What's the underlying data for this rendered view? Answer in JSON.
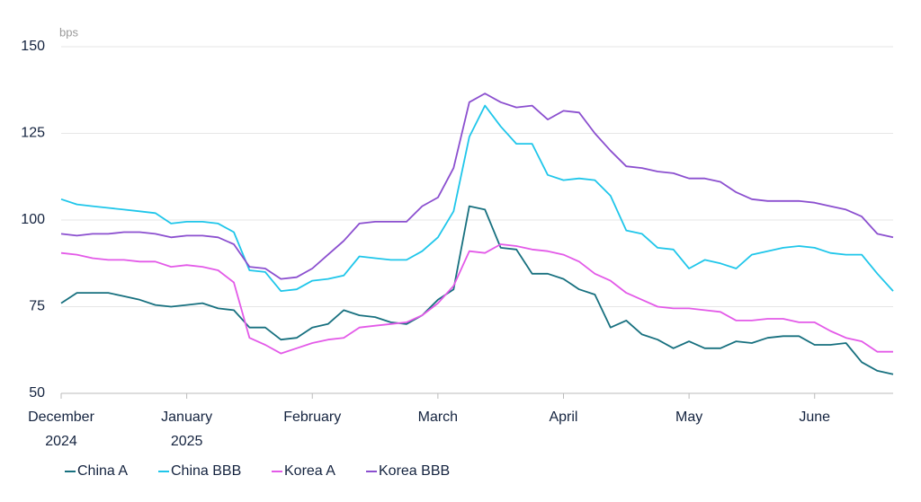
{
  "chart_data": {
    "type": "line",
    "y_unit": "bps",
    "categories": [
      "December\n2024",
      null,
      null,
      null,
      null,
      null,
      null,
      null,
      "January\n2025",
      null,
      null,
      null,
      null,
      null,
      null,
      null,
      "February",
      null,
      null,
      null,
      null,
      null,
      null,
      null,
      "March",
      null,
      null,
      null,
      null,
      null,
      null,
      null,
      "April",
      null,
      null,
      null,
      null,
      null,
      null,
      null,
      "May",
      null,
      null,
      null,
      null,
      null,
      null,
      null,
      "June",
      null,
      null,
      null,
      null,
      null
    ],
    "ylim": [
      50,
      150
    ],
    "yticks": [
      50,
      75,
      100,
      125,
      150
    ],
    "grid": true,
    "legend": "bottom-left",
    "series": [
      {
        "name": "China A",
        "color": "#17707f",
        "values": [
          76,
          79,
          79,
          79,
          78,
          77,
          75.5,
          75,
          75.5,
          76,
          74.5,
          74,
          69,
          69,
          65.5,
          66,
          69,
          70,
          74,
          72.5,
          72,
          70.5,
          70,
          72.5,
          77,
          80,
          104,
          103,
          92,
          91.5,
          84.5,
          84.5,
          83,
          80,
          78.5,
          69,
          71,
          67,
          65.5,
          63,
          65,
          63,
          63,
          65,
          64.5,
          66,
          66.5,
          66.5,
          64,
          64,
          64.5,
          59,
          56.5,
          55.5
        ]
      },
      {
        "name": "China BBB",
        "color": "#1fc6ea",
        "values": [
          106,
          104.5,
          104,
          103.5,
          103,
          102.5,
          102,
          99,
          99.5,
          99.5,
          99,
          96.5,
          85.5,
          85,
          79.5,
          80,
          82.5,
          83,
          84,
          89.5,
          89,
          88.5,
          88.5,
          91,
          95,
          102.5,
          124,
          133,
          127,
          122,
          122,
          113,
          111.5,
          112,
          111.5,
          107,
          97,
          96,
          92,
          91.5,
          86,
          88.5,
          87.5,
          86,
          90,
          91,
          92,
          92.5,
          92,
          90.5,
          90,
          90,
          84.5,
          79.5
        ]
      },
      {
        "name": "Korea A",
        "color": "#e35ae8",
        "values": [
          90.5,
          90,
          89,
          88.5,
          88.5,
          88,
          88,
          86.5,
          87,
          86.5,
          85.5,
          82,
          66,
          64,
          61.5,
          63,
          64.5,
          65.5,
          66,
          69,
          69.5,
          70,
          70.5,
          72.5,
          76,
          81,
          91,
          90.5,
          93,
          92.5,
          91.5,
          91,
          90,
          88,
          84.5,
          82.5,
          79,
          77,
          75,
          74.5,
          74.5,
          74,
          73.5,
          71,
          71,
          71.5,
          71.5,
          70.5,
          70.5,
          68,
          66,
          65,
          62,
          62
        ]
      },
      {
        "name": "Korea BBB",
        "color": "#8b4fcf",
        "values": [
          96,
          95.5,
          96,
          96,
          96.5,
          96.5,
          96,
          95,
          95.5,
          95.5,
          95,
          93,
          86.5,
          86,
          83,
          83.5,
          86,
          90,
          94,
          99,
          99.5,
          99.5,
          99.5,
          104,
          106.5,
          115,
          134,
          136.5,
          134,
          132.5,
          133,
          129,
          131.5,
          131,
          125,
          120,
          115.5,
          115,
          114,
          113.5,
          112,
          112,
          111,
          108,
          106,
          105.5,
          105.5,
          105.5,
          105,
          104,
          103,
          101,
          96,
          95
        ]
      }
    ]
  }
}
